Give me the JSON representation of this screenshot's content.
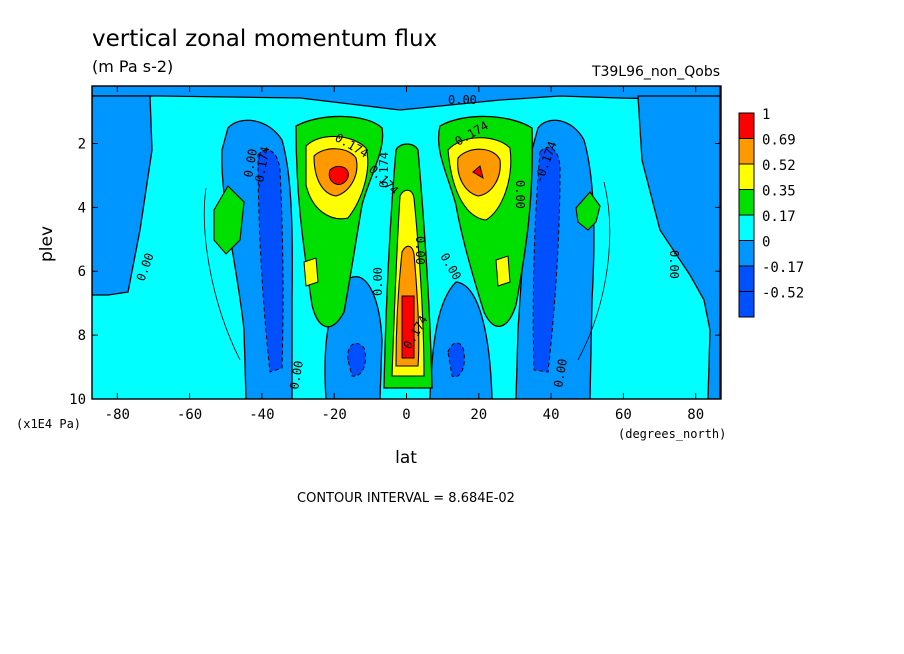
{
  "chart_data": {
    "type": "heatmap",
    "title": "vertical zonal momentum flux",
    "subtitle": "(m Pa s-2)",
    "run_label": "T39L96_non_Qobs",
    "xlabel": "lat",
    "xunit": "(degrees_north)",
    "ylabel": "plev",
    "yunit": "(x1E4 Pa)",
    "xlim": [
      -87,
      87
    ],
    "ylim": [
      10,
      0.2
    ],
    "x_ticks": [
      -80,
      -60,
      -40,
      -20,
      0,
      20,
      40,
      60,
      80
    ],
    "x_tick_labels": [
      "-80",
      "-60",
      "-40",
      "-20",
      "0",
      "20",
      "40",
      "60",
      "80"
    ],
    "y_ticks": [
      2,
      4,
      6,
      8,
      10
    ],
    "y_tick_labels": [
      "2",
      "4",
      "6",
      "8",
      "10"
    ],
    "contour_interval_text": "CONTOUR INTERVAL = 8.684E-02",
    "levels": [
      {
        "label": "1",
        "color": "#ff0000"
      },
      {
        "label": "0.69",
        "color": "#ff9900"
      },
      {
        "label": "0.52",
        "color": "#ffff00"
      },
      {
        "label": "0.35",
        "color": "#00e000"
      },
      {
        "label": "0.17",
        "color": "#00ffff"
      },
      {
        "label": "0",
        "color": "#0096ff"
      },
      {
        "label": "-0.17",
        "color": "#0050ff"
      },
      {
        "label": "-0.52",
        "color": "#0050ff"
      }
    ],
    "colorbar": [
      "1",
      "0.69",
      "0.52",
      "0.35",
      "0.17",
      "0",
      "-0.17",
      "-0.52"
    ],
    "contour_labels": [
      "0.00",
      "0.174",
      "-0.174",
      "0.00",
      "0.174",
      "0.174",
      "0.174",
      "-0.174",
      "0.00",
      "0.00",
      "0.00",
      "0.00",
      "0.00",
      "0.00",
      "0.00",
      "0.00",
      "0.174"
    ],
    "features": [
      {
        "name": "NH jet core",
        "lat": 20,
        "plev": 3,
        "value": 1.0
      },
      {
        "name": "SH jet core",
        "lat": -19,
        "plev": 3,
        "value": 1.0
      },
      {
        "name": "equatorial maximum",
        "lat": 0,
        "plev": 8,
        "value": 1.0
      },
      {
        "name": "NH negative band",
        "lat": 40,
        "plev": 6,
        "value": -0.52
      },
      {
        "name": "SH negative band",
        "lat": -39,
        "plev": 6,
        "value": -0.52
      }
    ]
  }
}
